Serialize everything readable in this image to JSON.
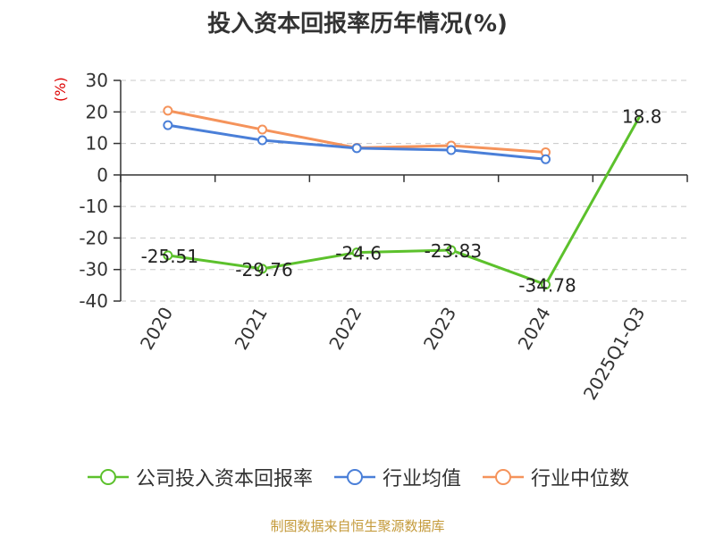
{
  "chart_data": {
    "type": "line",
    "title": "投入资本回报率历年情况(%)",
    "ylabel": "(%)",
    "categories": [
      "2020",
      "2021",
      "2022",
      "2023",
      "2024",
      "2025Q1-Q3"
    ],
    "ylim": [
      -40,
      30
    ],
    "yticks": [
      30,
      20,
      10,
      0,
      -10,
      -20,
      -30,
      -40
    ],
    "grid": true,
    "legend_position": "bottom",
    "series": [
      {
        "name": "公司投入资本回报率",
        "color": "#5cc12c",
        "values": [
          -25.51,
          -29.76,
          -24.6,
          -23.83,
          -34.78,
          18.8
        ],
        "labels": [
          "-25.51",
          "-29.76",
          "-24.6",
          "-23.83",
          "-34.78",
          "18.8"
        ],
        "markers": [
          true,
          true,
          true,
          true,
          true,
          false
        ]
      },
      {
        "name": "行业均值",
        "color": "#4a7fd8",
        "values": [
          15.8,
          11.0,
          8.5,
          7.9,
          5.0,
          null
        ],
        "markers": [
          true,
          true,
          true,
          true,
          true,
          false
        ]
      },
      {
        "name": "行业中位数",
        "color": "#f5935b",
        "values": [
          20.4,
          14.4,
          8.6,
          9.3,
          7.2,
          null
        ],
        "markers": [
          true,
          true,
          true,
          true,
          true,
          false
        ]
      }
    ]
  },
  "source": "制图数据来自恒生聚源数据库"
}
